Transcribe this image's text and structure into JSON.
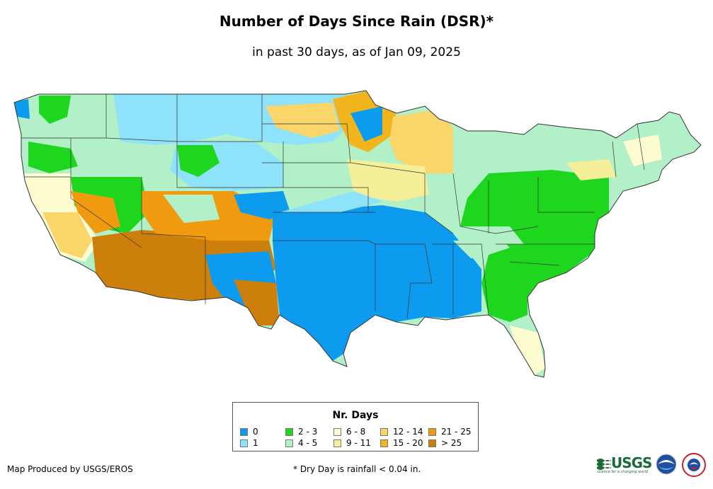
{
  "title": "Number of Days Since Rain (DSR)*",
  "subtitle": "in past 30 days, as of Jan 09, 2025",
  "legend": {
    "title": "Nr. Days",
    "items": [
      {
        "label": "0",
        "color": "#0d9bf0"
      },
      {
        "label": "1",
        "color": "#8ee2fa"
      },
      {
        "label": "2 - 3",
        "color": "#1ed61e"
      },
      {
        "label": "4 - 5",
        "color": "#b2f0c8"
      },
      {
        "label": "6 - 8",
        "color": "#fdfbd0"
      },
      {
        "label": "9 - 11",
        "color": "#f6ef99"
      },
      {
        "label": "12 - 14",
        "color": "#f9d56a"
      },
      {
        "label": "15 - 20",
        "color": "#f3b51d"
      },
      {
        "label": "21 - 25",
        "color": "#f09a10"
      },
      {
        "label": "> 25",
        "color": "#cc7f0b"
      }
    ]
  },
  "footer": {
    "producer": "Map Produced by USGS/EROS",
    "note": "* Dry Day is rainfall < 0.04 in."
  },
  "logos": {
    "usgs_text": "USGS",
    "usgs_tagline": "science for a changing world"
  }
}
